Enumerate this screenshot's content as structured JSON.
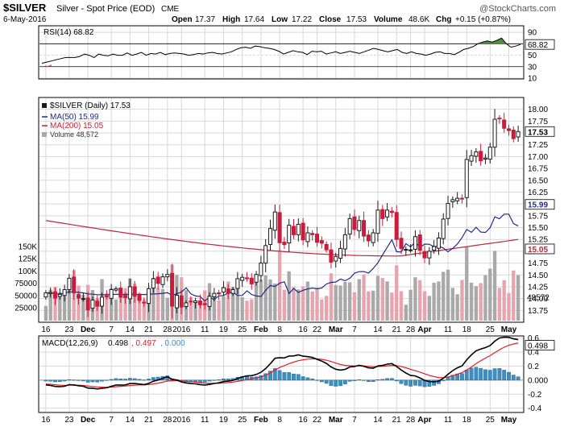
{
  "header": {
    "ticker": "$SILVER",
    "description": "Silver - Spot Price (EOD)",
    "exchange": "CME",
    "watermark": "@StockCharts.com",
    "date": "6-May-2016",
    "open_label": "Open",
    "open": "17.37",
    "high_label": "High",
    "high": "17.64",
    "low_label": "Low",
    "low": "17.22",
    "close_label": "Close",
    "close": "17.53",
    "volume_label": "Volume",
    "volume": "48.6K",
    "chg_label": "Chg",
    "chg": "+0.15 (+0.87%)"
  },
  "colors": {
    "up": "#1a1a1a",
    "down": "#cc1a3c",
    "ma50": "#1f2a8a",
    "ma200": "#c0243a",
    "volume_up": "#a9a9a9",
    "volume_down": "#e8a4ae",
    "macd_line": "#000000",
    "signal_line": "#e0202a",
    "histogram": "#3b8fc4",
    "rsi_line": "#000000",
    "rsi_overbought_fill": "#4f8f3f",
    "rsi_oversold_fill": "#a04a6a",
    "grid": "#d8d8d8"
  },
  "x_axis_labels": [
    "16",
    "23",
    "Dec",
    "7",
    "14",
    "21",
    "28",
    "2016",
    "11",
    "19",
    "25",
    "Feb",
    "8",
    "16",
    "22",
    "Mar",
    "7",
    "14",
    "21",
    "28",
    "Apr",
    "11",
    "18",
    "25",
    "May"
  ],
  "chart_data": [
    {
      "type": "line",
      "panel": "rsi",
      "label": "RSI(14) 68.82",
      "last_value": 68.82,
      "ylim": [
        10,
        100
      ],
      "ticks": [
        10,
        30,
        50,
        70,
        90
      ],
      "levels": [
        30,
        70
      ],
      "values": [
        36,
        38,
        40,
        42,
        44,
        46,
        46,
        46,
        48,
        52,
        50,
        46,
        52,
        50,
        49,
        52,
        50,
        50,
        54,
        50,
        52,
        55,
        50,
        53,
        52,
        55,
        51,
        53,
        54,
        53,
        52,
        50,
        51,
        53,
        52,
        54,
        55,
        53,
        52,
        54,
        56,
        60,
        63,
        64,
        62,
        66,
        65,
        63,
        62,
        60,
        57,
        52,
        55,
        58,
        56,
        55,
        51,
        57,
        56,
        57,
        52,
        54,
        56,
        53,
        55,
        57,
        55,
        53,
        56,
        59,
        62,
        60,
        58,
        56,
        58,
        60,
        55,
        53,
        56,
        53,
        52,
        50,
        52,
        55,
        56,
        53,
        53,
        51,
        55,
        60,
        62,
        65,
        70,
        73,
        75,
        73,
        76,
        80,
        70,
        64,
        66,
        68.82
      ]
    },
    {
      "type": "candlestick",
      "panel": "price",
      "label": "$SILVER (Daily) 17.53",
      "last_value": 17.53,
      "ylim": [
        13.5,
        18.25
      ],
      "ticks": [
        13.75,
        14.0,
        14.25,
        14.5,
        14.75,
        15.0,
        15.25,
        15.5,
        15.75,
        16.0,
        16.25,
        16.5,
        16.75,
        17.0,
        17.25,
        17.5,
        17.75,
        18.0
      ],
      "close": [
        14.12,
        14.13,
        14.01,
        14.09,
        14.19,
        14.43,
        14.12,
        14.01,
        14.0,
        13.76,
        13.97,
        13.84,
        14.03,
        14.04,
        14.19,
        14.21,
        14.03,
        14.02,
        14.25,
        14.05,
        13.96,
        13.91,
        14.21,
        14.42,
        14.32,
        14.46,
        14.51,
        13.84,
        14.07,
        13.82,
        13.91,
        13.94,
        13.95,
        13.87,
        13.87,
        14.05,
        14.11,
        14.1,
        14.23,
        14.11,
        14.19,
        14.42,
        14.45,
        14.42,
        14.31,
        14.51,
        14.75,
        15.12,
        15.48,
        15.83,
        15.18,
        15.14,
        15.55,
        15.35,
        15.57,
        15.24,
        15.39,
        15.35,
        15.19,
        15.17,
        15.03,
        14.77,
        14.89,
        15.06,
        15.35,
        15.69,
        15.46,
        15.65,
        15.32,
        15.22,
        15.39,
        15.87,
        15.69,
        15.87,
        15.82,
        15.25,
        15.06,
        15.04,
        15.03,
        15.31,
        15.02,
        14.86,
        15.0,
        15.1,
        15.28,
        15.68,
        16.01,
        16.09,
        16.12,
        16.11,
        16.94,
        17.02,
        17.1,
        16.91,
        16.97,
        17.2,
        17.79,
        17.81,
        17.6,
        17.55,
        17.38,
        17.53
      ],
      "ma50_label": "MA(50) 15.99",
      "ma50": [
        15.99
      ],
      "ma200_label": "MA(200) 15.05",
      "ma200": [
        15.05
      ],
      "volume_label": "Volume 48,572",
      "volume_ticks": [
        25000,
        50000,
        75000,
        100000,
        125000,
        150000
      ],
      "volume_tick_labels": [
        "25000",
        "50000",
        "75000",
        "100K",
        "125K",
        "150K"
      ],
      "volume_last_label": "48572",
      "ma50_box": "15.99",
      "ma200_box": "15.05",
      "last_box": "17.53"
    },
    {
      "type": "line",
      "panel": "macd",
      "label": "MACD(12,26,9) 0.498, 0.497, 0.000",
      "macd_value": "0.498",
      "signal_value": "0.497",
      "hist_value": "0.000",
      "ylim": [
        -0.45,
        0.62
      ],
      "ticks": [
        -0.4,
        -0.2,
        0.0,
        0.2,
        0.4,
        0.6
      ],
      "tick_labels": [
        "-0.4",
        "-0.2",
        "0.000",
        "0.2",
        "0.4",
        "0.6"
      ],
      "macd_box": "0.498"
    }
  ]
}
